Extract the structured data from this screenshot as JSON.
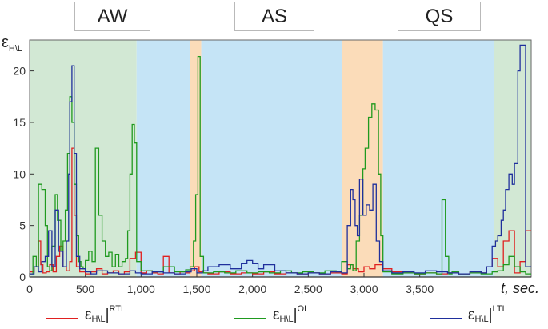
{
  "phase_labels": {
    "aw": "AW",
    "as": "AS",
    "qs": "QS"
  },
  "ylabel": {
    "main": "ε",
    "sub": "H\\L"
  },
  "xlabel": "t, sec.",
  "legend": [
    {
      "key": "rtl",
      "main": "ε",
      "sub": "H\\L",
      "sup": "RTL",
      "color": "#e02020"
    },
    {
      "key": "ol",
      "main": "ε",
      "sub": "H\\L",
      "sup": "OL",
      "color": "#1f9a1f"
    },
    {
      "key": "ltl",
      "main": "ε",
      "sub": "H\\L",
      "sup": "LTL",
      "color": "#1f2f9c"
    }
  ],
  "chart_data": {
    "type": "line",
    "xlim": [
      0,
      4500
    ],
    "ylim": [
      0,
      23
    ],
    "xticks": [
      0,
      500,
      1000,
      1500,
      2000,
      2500,
      3000,
      3500
    ],
    "xtick_labels": [
      "0",
      "500",
      "1,000",
      "1,500",
      "2,000",
      "2,500",
      "3,000",
      "3,500"
    ],
    "yticks": [
      0,
      5,
      10,
      15,
      20
    ],
    "ytick_labels": [
      "0",
      "5",
      "10",
      "15",
      "20"
    ],
    "phases": [
      {
        "label": "AW",
        "start": 0,
        "end": 960,
        "color": "#d2e8d4"
      },
      {
        "label": "AS",
        "start": 960,
        "end": 1440,
        "color": "#c5e4f6"
      },
      {
        "label": "QS",
        "start": 1440,
        "end": 1540,
        "color": "#fbdcb9"
      },
      {
        "label": "AS",
        "start": 1540,
        "end": 2800,
        "color": "#c5e4f6"
      },
      {
        "label": "QS",
        "start": 2800,
        "end": 3170,
        "color": "#fbdcb9"
      },
      {
        "label": "AS",
        "start": 3170,
        "end": 4170,
        "color": "#c5e4f6"
      },
      {
        "label": "AW",
        "start": 4170,
        "end": 4500,
        "color": "#d2e8d4"
      }
    ],
    "series": [
      {
        "name": "RTL",
        "color": "#e02020",
        "x": [
          0,
          40,
          80,
          100,
          120,
          150,
          180,
          210,
          240,
          270,
          300,
          330,
          360,
          380,
          400,
          420,
          450,
          500,
          550,
          600,
          650,
          700,
          750,
          800,
          850,
          900,
          950,
          1000,
          1050,
          1100,
          1150,
          1200,
          1250,
          1300,
          1350,
          1400,
          1440,
          1480,
          1520,
          1560,
          1600,
          1700,
          1800,
          1900,
          2000,
          2100,
          2200,
          2300,
          2400,
          2500,
          2600,
          2700,
          2800,
          2850,
          2900,
          2950,
          3000,
          3050,
          3100,
          3170,
          3250,
          3350,
          3450,
          3550,
          3650,
          3750,
          3850,
          3950,
          4050,
          4100,
          4150,
          4200,
          4250,
          4300,
          4350,
          4400,
          4450
        ],
        "y": [
          0.5,
          1.0,
          3.5,
          1.2,
          0.4,
          0.5,
          1.2,
          0.5,
          2.0,
          3.0,
          1.0,
          0.6,
          1.5,
          12.5,
          6.0,
          1.0,
          0.5,
          0.3,
          0.5,
          0.8,
          0.3,
          0.4,
          0.6,
          0.3,
          0.5,
          1.8,
          2.4,
          0.4,
          0.6,
          0.4,
          0.3,
          2.0,
          0.4,
          0.3,
          0.5,
          0.4,
          0.6,
          1.0,
          0.5,
          0.4,
          0.3,
          0.5,
          0.3,
          0.4,
          0.3,
          0.5,
          0.3,
          0.4,
          0.3,
          0.4,
          0.3,
          0.4,
          0.3,
          1.2,
          0.8,
          0.5,
          1.0,
          0.8,
          1.2,
          0.8,
          0.5,
          0.4,
          0.3,
          0.4,
          0.3,
          0.4,
          0.3,
          0.5,
          0.4,
          1.0,
          1.8,
          1.0,
          3.5,
          4.5,
          0.4,
          1.5,
          4.5
        ]
      },
      {
        "name": "OL",
        "color": "#1f9a1f",
        "x": [
          0,
          30,
          60,
          80,
          110,
          140,
          160,
          180,
          200,
          230,
          250,
          280,
          300,
          320,
          340,
          360,
          380,
          400,
          420,
          440,
          460,
          480,
          500,
          530,
          560,
          590,
          620,
          650,
          680,
          710,
          740,
          770,
          800,
          830,
          860,
          880,
          900,
          920,
          940,
          960,
          1000,
          1100,
          1200,
          1300,
          1400,
          1440,
          1470,
          1490,
          1510,
          1530,
          1560,
          1650,
          1750,
          1850,
          1950,
          2050,
          2150,
          2250,
          2350,
          2450,
          2550,
          2650,
          2750,
          2800,
          2850,
          2880,
          2900,
          2930,
          2960,
          2990,
          3010,
          3040,
          3070,
          3100,
          3130,
          3150,
          3170,
          3250,
          3350,
          3450,
          3550,
          3650,
          3700,
          3730,
          3760,
          3790,
          3850,
          3950,
          4050,
          4150,
          4200,
          4250,
          4300,
          4350,
          4400,
          4450
        ],
        "y": [
          0.3,
          2.0,
          1.0,
          9.0,
          8.5,
          5.0,
          1.0,
          0.6,
          3.0,
          8.0,
          5.5,
          2.5,
          3.5,
          6.5,
          12.0,
          17.5,
          15.0,
          9.0,
          4.0,
          1.5,
          1.0,
          0.8,
          1.6,
          2.5,
          1.5,
          12.5,
          6.0,
          3.5,
          2.0,
          2.4,
          1.0,
          2.2,
          1.0,
          1.5,
          1.8,
          4.5,
          10.0,
          14.8,
          13.0,
          1.5,
          0.6,
          0.5,
          1.0,
          0.5,
          0.7,
          1.0,
          3.5,
          8.0,
          21.4,
          2.0,
          0.4,
          0.5,
          0.4,
          0.6,
          0.4,
          0.5,
          0.4,
          0.6,
          0.4,
          0.5,
          0.4,
          0.6,
          0.5,
          1.5,
          0.8,
          1.2,
          0.6,
          3.5,
          6.0,
          10.5,
          12.5,
          15.5,
          16.8,
          16.2,
          10.0,
          4.0,
          0.5,
          0.3,
          0.4,
          0.3,
          0.4,
          0.3,
          7.5,
          2.0,
          0.3,
          0.5,
          0.3,
          0.4,
          0.3,
          0.5,
          0.6,
          1.2,
          2.0,
          1.0,
          0.5,
          0.3
        ]
      },
      {
        "name": "LTL",
        "color": "#1f2f9c",
        "x": [
          0,
          40,
          80,
          110,
          140,
          170,
          200,
          230,
          260,
          300,
          330,
          350,
          360,
          380,
          400,
          420,
          450,
          500,
          550,
          600,
          700,
          800,
          900,
          950,
          1000,
          1100,
          1200,
          1300,
          1400,
          1450,
          1500,
          1550,
          1600,
          1700,
          1800,
          1900,
          1950,
          2000,
          2050,
          2100,
          2200,
          2300,
          2400,
          2500,
          2600,
          2700,
          2800,
          2850,
          2880,
          2900,
          2920,
          2940,
          2960,
          2990,
          3020,
          3050,
          3080,
          3110,
          3140,
          3170,
          3250,
          3350,
          3450,
          3550,
          3650,
          3750,
          3850,
          3950,
          4050,
          4100,
          4150,
          4180,
          4200,
          4230,
          4250,
          4270,
          4300,
          4330,
          4350,
          4380,
          4400,
          4450
        ],
        "y": [
          0.3,
          1.0,
          0.5,
          1.5,
          2.0,
          4.5,
          1.0,
          6.5,
          2.5,
          1.0,
          3.5,
          10.0,
          17.0,
          20.5,
          12.0,
          2.0,
          0.8,
          0.5,
          0.3,
          0.6,
          0.4,
          0.3,
          0.6,
          0.4,
          0.3,
          0.5,
          0.4,
          0.3,
          0.5,
          0.8,
          0.4,
          0.6,
          1.0,
          1.2,
          0.8,
          1.3,
          1.6,
          1.3,
          0.8,
          1.2,
          0.6,
          0.4,
          0.3,
          0.4,
          0.3,
          0.5,
          0.4,
          5.0,
          8.5,
          7.5,
          5.0,
          4.0,
          9.5,
          6.0,
          7.0,
          6.5,
          9.0,
          3.5,
          1.5,
          0.6,
          0.4,
          0.5,
          0.4,
          0.6,
          0.5,
          0.4,
          0.3,
          0.5,
          0.4,
          1.0,
          3.0,
          3.5,
          4.0,
          5.5,
          6.5,
          8.5,
          10.0,
          9.0,
          11.0,
          20.0,
          22.5,
          1.0
        ]
      }
    ]
  }
}
